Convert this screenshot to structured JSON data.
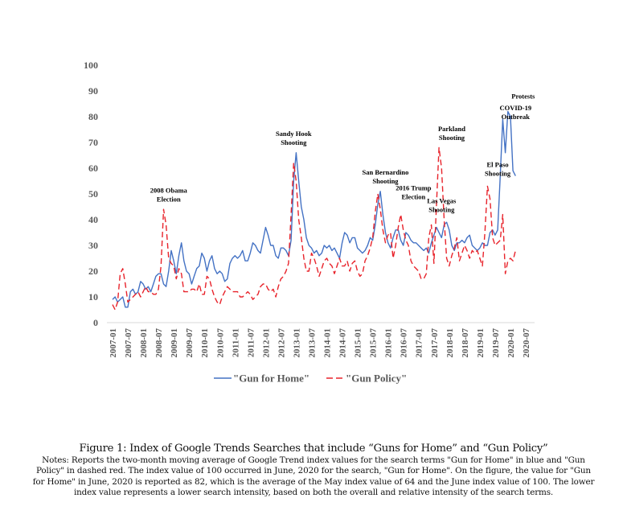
{
  "chart_data": {
    "type": "line",
    "title": "",
    "xlabel": "",
    "ylabel": "",
    "ylim": [
      0,
      100
    ],
    "yticks": [
      0,
      10,
      20,
      30,
      40,
      50,
      60,
      70,
      80,
      90,
      100
    ],
    "grid": false,
    "legend_position": "bottom",
    "x_start": "2007-01",
    "x_step_months": 1,
    "xtick_labels": [
      "2007-01",
      "2007-07",
      "2008-01",
      "2008-07",
      "2009-01",
      "2009-07",
      "2010-01",
      "2010-07",
      "2011-01",
      "2011-07",
      "2012-01",
      "2012-07",
      "2013-01",
      "2013-07",
      "2014-01",
      "2014-07",
      "2015-01",
      "2015-07",
      "2016-01",
      "2016-07",
      "2017-01",
      "2017-07",
      "2018-01",
      "2018-07",
      "2019-01",
      "2019-07",
      "2020-01",
      "2020-07"
    ],
    "series": [
      {
        "name": "\"Gun for Home\"",
        "color": "#4472C4",
        "style": "solid",
        "values": [
          9,
          10,
          8,
          9,
          10,
          6,
          6,
          12,
          13,
          11,
          12,
          16,
          15,
          13,
          14,
          12,
          15,
          18,
          19,
          19,
          15,
          14,
          20,
          28,
          24,
          19,
          26,
          31,
          24,
          20,
          19,
          15,
          18,
          21,
          22,
          27,
          25,
          20,
          24,
          26,
          21,
          19,
          20,
          19,
          16,
          17,
          23,
          25,
          26,
          25,
          26,
          28,
          24,
          24,
          27,
          31,
          30,
          28,
          27,
          32,
          37,
          34,
          30,
          30,
          26,
          25,
          29,
          29,
          28,
          26,
          32,
          55,
          66,
          55,
          45,
          40,
          33,
          30,
          29,
          27,
          28,
          26,
          27,
          30,
          29,
          30,
          28,
          29,
          27,
          25,
          31,
          35,
          34,
          31,
          33,
          33,
          29,
          28,
          27,
          28,
          30,
          33,
          32,
          38,
          46,
          51,
          42,
          35,
          31,
          29,
          33,
          36,
          36,
          32,
          30,
          35,
          34,
          32,
          31,
          31,
          30,
          29,
          28,
          29,
          27,
          31,
          34,
          37,
          35,
          33,
          38,
          39,
          36,
          30,
          28,
          31,
          31,
          32,
          31,
          33,
          34,
          30,
          29,
          28,
          29,
          31,
          30,
          30,
          35,
          36,
          34,
          36,
          57,
          79,
          66,
          82,
          80,
          59,
          57
        ]
      },
      {
        "name": "\"Gun Policy\"",
        "color": "#E8232B",
        "style": "dashed",
        "values": [
          7,
          5,
          8,
          19,
          21,
          15,
          8,
          9,
          10,
          11,
          12,
          10,
          12,
          14,
          12,
          12,
          11,
          11,
          13,
          22,
          44,
          38,
          25,
          23,
          22,
          17,
          21,
          19,
          12,
          12,
          12,
          13,
          13,
          12,
          15,
          11,
          11,
          18,
          17,
          13,
          10,
          8,
          7,
          10,
          12,
          14,
          13,
          12,
          12,
          12,
          10,
          10,
          11,
          12,
          11,
          9,
          10,
          11,
          14,
          15,
          15,
          13,
          12,
          13,
          10,
          14,
          17,
          18,
          20,
          23,
          42,
          62,
          55,
          40,
          33,
          25,
          20,
          20,
          27,
          25,
          22,
          18,
          21,
          24,
          25,
          23,
          22,
          19,
          22,
          25,
          22,
          22,
          24,
          20,
          23,
          24,
          20,
          18,
          19,
          24,
          26,
          29,
          33,
          43,
          50,
          44,
          36,
          31,
          34,
          35,
          25,
          30,
          37,
          42,
          36,
          32,
          30,
          24,
          22,
          21,
          20,
          17,
          17,
          19,
          33,
          38,
          23,
          46,
          68,
          60,
          40,
          25,
          22,
          26,
          29,
          33,
          24,
          27,
          30,
          28,
          25,
          28,
          27,
          28,
          25,
          22,
          35,
          53,
          48,
          33,
          30,
          31,
          32,
          42,
          19,
          24,
          25,
          24,
          28
        ]
      }
    ],
    "annotations": [
      {
        "lines": [
          "2008 Obama",
          "Election"
        ],
        "at": "2008-11",
        "value": 47
      },
      {
        "lines": [
          "Sandy Hook",
          "Shooting"
        ],
        "at": "2012-12",
        "value": 69
      },
      {
        "lines": [
          "San Bernardino",
          "Shooting"
        ],
        "at": "2015-12",
        "value": 54
      },
      {
        "lines": [
          "2016 Trump",
          "Election"
        ],
        "at": "2016-11",
        "value": 48
      },
      {
        "lines": [
          "Las Vegas",
          "Shooting"
        ],
        "at": "2017-10",
        "value": 43
      },
      {
        "lines": [
          "Parkland",
          "Shooting"
        ],
        "at": "2018-02",
        "value": 71
      },
      {
        "lines": [
          "El Paso",
          "Shooting"
        ],
        "at": "2019-08",
        "value": 57
      },
      {
        "lines": [
          "COVID-19",
          "Outbreak"
        ],
        "at": "2020-03",
        "value": 79
      },
      {
        "lines": [
          "Protests"
        ],
        "at": "2020-06",
        "value": 87
      }
    ]
  },
  "caption": {
    "title": "Figure 1: Index of Google Trends Searches that include “Guns for Home” and “Gun Policy”",
    "notes": "Notes: Reports the two-month moving average of Google Trend index values for the search terms \"Gun for Home\" in blue and \"Gun Policy\" in dashed red. The index value of 100 occurred in June, 2020 for the search, \"Gun for Home\". On the figure, the value for \"Gun for Home\" in June, 2020 is reported as 82, which is the average of the May index value of 64 and the June index value of 100. The lower index value represents a lower search intensity, based on both the overall and relative intensity of the search terms."
  }
}
